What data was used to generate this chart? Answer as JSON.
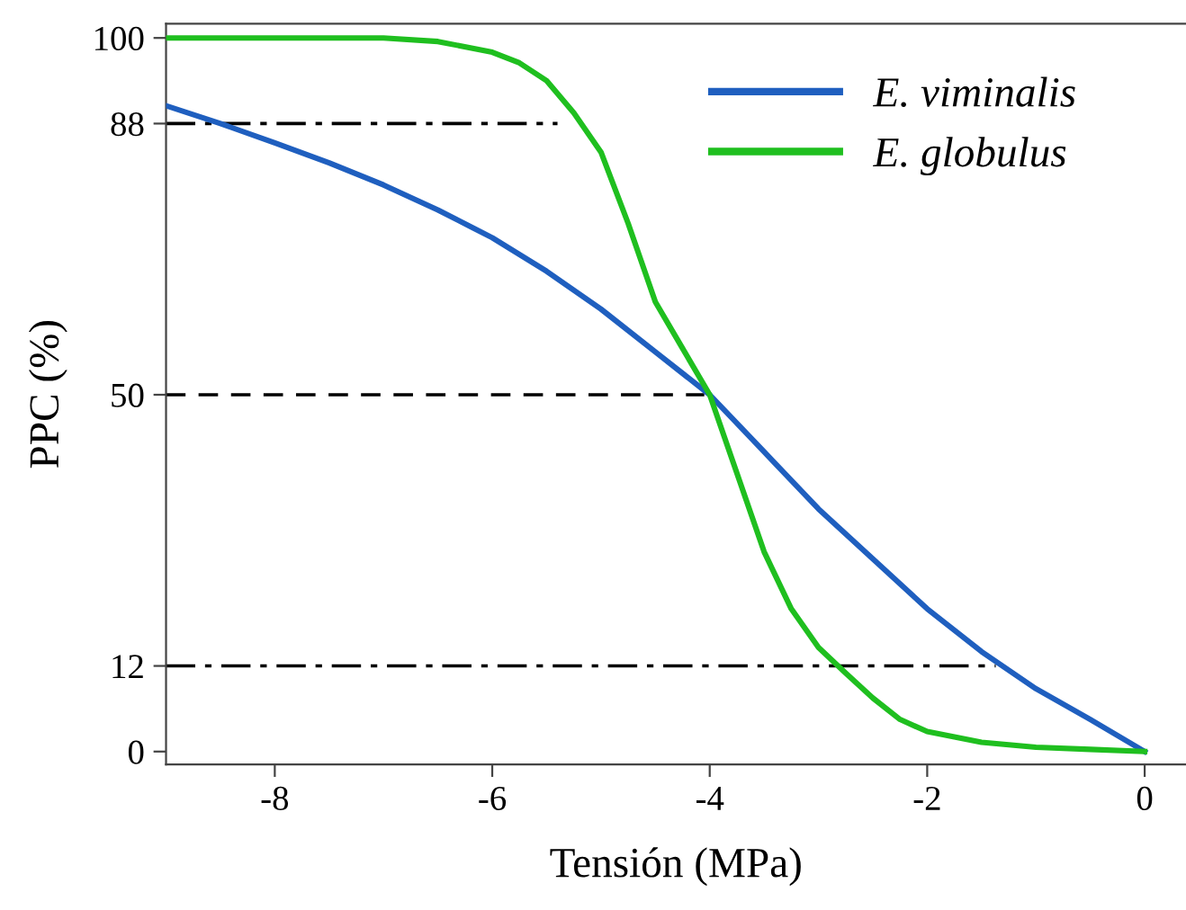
{
  "chart_data": {
    "type": "line",
    "xlabel": "Tensión (MPa)",
    "ylabel": "PPC (%)",
    "xlim": [
      -9,
      0.38
    ],
    "ylim": [
      -1.8,
      102
    ],
    "xticks": [
      -8,
      -6,
      -4,
      -2,
      0
    ],
    "yticks": [
      0,
      12,
      50,
      88,
      100
    ],
    "grid": false,
    "legend": "top right",
    "marker": "none",
    "line_style": "solid",
    "series": [
      {
        "name": "E. viminalis",
        "color": "#1f5fbf",
        "x": [
          -9,
          -8.5,
          -8,
          -7.5,
          -7,
          -6.5,
          -6,
          -5.5,
          -5,
          -4.5,
          -4,
          -3.5,
          -3,
          -2.5,
          -2,
          -1.5,
          -1,
          -0.5,
          0
        ],
        "values": [
          90.5,
          88,
          85.3,
          82.5,
          79.4,
          75.9,
          72,
          67.3,
          62,
          56,
          50,
          42,
          34,
          27,
          20,
          14,
          8.8,
          4.5,
          0
        ]
      },
      {
        "name": "E. globulus",
        "color": "#1fbf1f",
        "x": [
          -9,
          -8,
          -7,
          -6.5,
          -6,
          -5.75,
          -5.5,
          -5.25,
          -5,
          -4.75,
          -4.5,
          -4.25,
          -4,
          -3.75,
          -3.5,
          -3.25,
          -3,
          -2.75,
          -2.5,
          -2.25,
          -2,
          -1.5,
          -1,
          -0.5,
          0
        ],
        "values": [
          100,
          100,
          100,
          99.5,
          98,
          96.5,
          94,
          89.5,
          84,
          74,
          63,
          56.5,
          50,
          39,
          28,
          20,
          14.6,
          11,
          7.5,
          4.5,
          2.8,
          1.3,
          0.6,
          0.3,
          0
        ]
      },
      {
        "color": "#000000",
        "line_style": "dashdot",
        "x": [
          -9,
          -5.4
        ],
        "values": [
          88,
          88
        ]
      },
      {
        "color": "#000000",
        "line_style": "dashed",
        "x": [
          -9,
          -4.05
        ],
        "values": [
          50,
          50
        ]
      },
      {
        "color": "#000000",
        "line_style": "dashdot",
        "x": [
          -9,
          -1.37
        ],
        "values": [
          12,
          12
        ]
      }
    ]
  }
}
